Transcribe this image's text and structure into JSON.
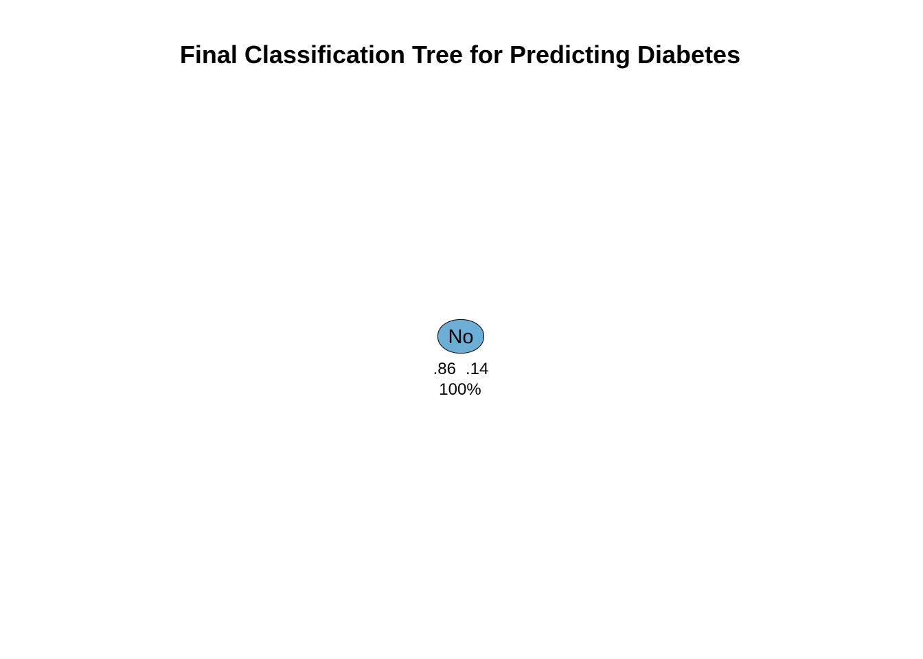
{
  "title": "Final Classification Tree for Predicting Diabetes",
  "tree": {
    "root": {
      "label": "No",
      "fill_color": "#6BAED6",
      "border_color": "#000000",
      "probabilities": [
        ".86",
        ".14"
      ],
      "percent": "100%"
    }
  }
}
